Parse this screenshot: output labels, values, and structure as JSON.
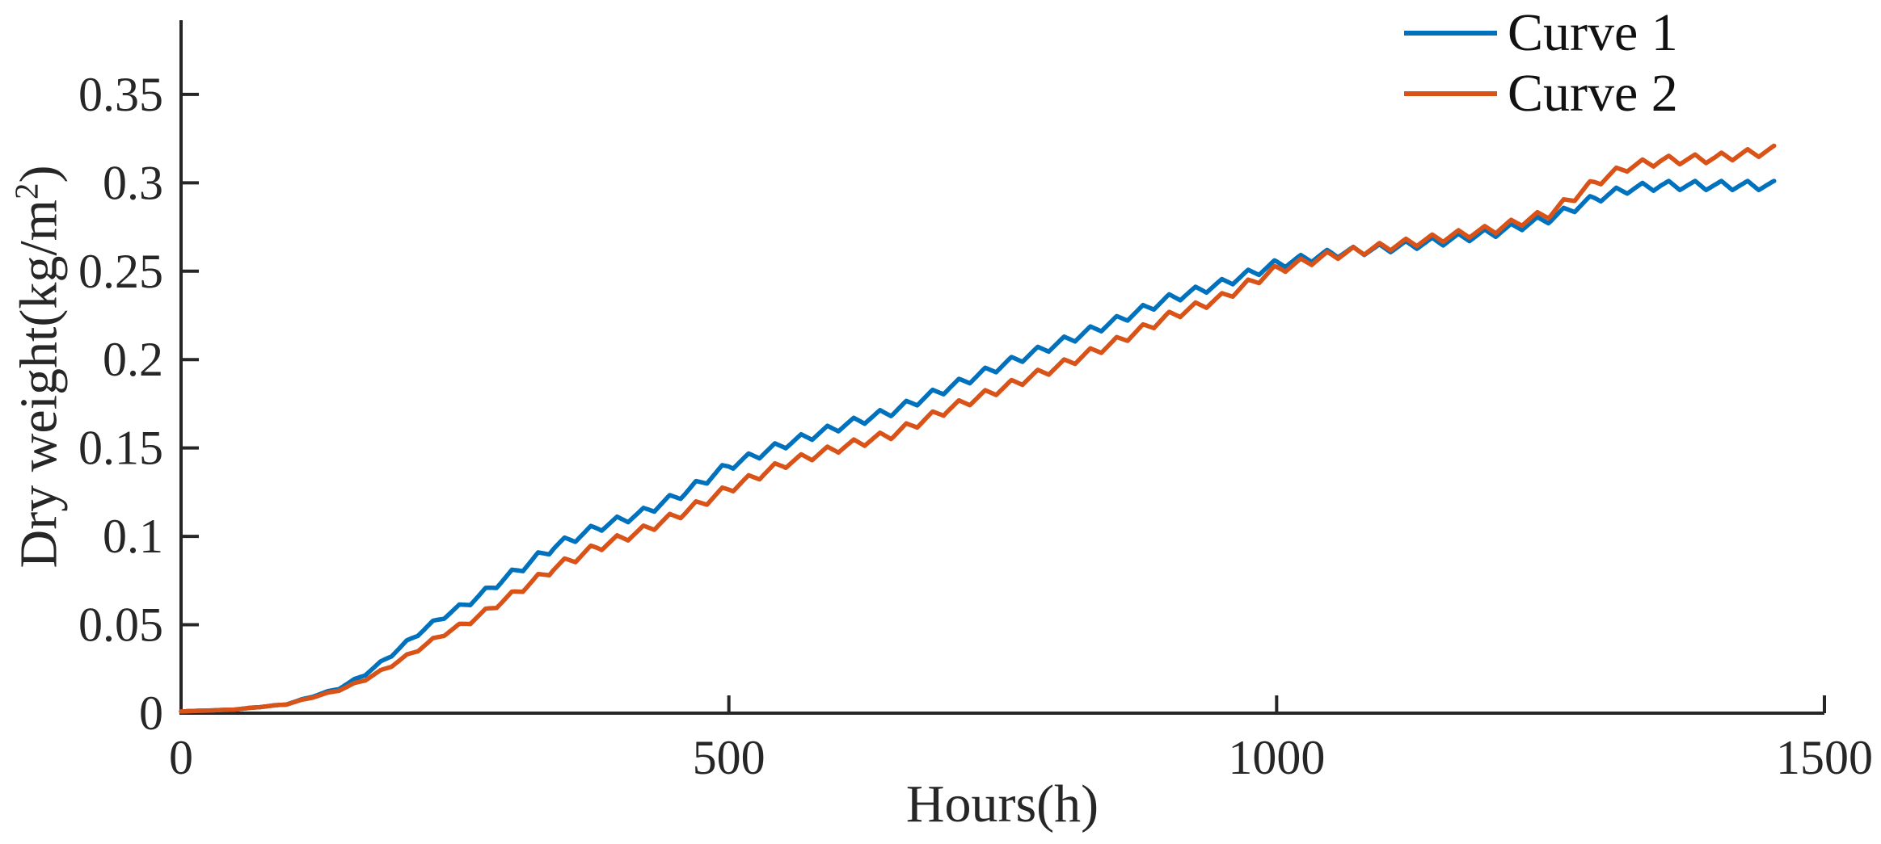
{
  "chart_data": {
    "type": "line",
    "title": "",
    "xlabel": "Hours(h)",
    "ylabel_pre": "Dry weight(kg/m",
    "ylabel_sup": "2",
    "ylabel_post": ")",
    "xlim": [
      0,
      1500
    ],
    "ylim": [
      0,
      0.392
    ],
    "xticks": [
      0,
      500,
      1000,
      1500
    ],
    "xtick_labels": [
      "0",
      "500",
      "1000",
      "1500"
    ],
    "yticks": [
      0,
      0.05,
      0.1,
      0.15,
      0.2,
      0.25,
      0.3,
      0.35
    ],
    "ytick_labels": [
      "0",
      "0.05",
      "0.1",
      "0.15",
      "0.2",
      "0.25",
      "0.3",
      "0.35"
    ],
    "grid": false,
    "box": false,
    "tick_direction": "in",
    "axis_color": "#262626",
    "legend_position": "top-right-outside-plot",
    "legend_frame": false,
    "x_range_hours": [
      0,
      1455
    ],
    "sample_step_hours": 2,
    "oscillation": {
      "period_hours": 24,
      "rise_fraction": 0.58,
      "amplitude": 0.0026,
      "amplitude_cap_ratio": 0.03
    },
    "series": [
      {
        "name": "Curve 1",
        "color": "#0072BD",
        "line_width": 5.5,
        "anchors": [
          [
            0,
            0.001
          ],
          [
            48,
            0.002
          ],
          [
            96,
            0.005
          ],
          [
            144,
            0.014
          ],
          [
            168,
            0.022
          ],
          [
            192,
            0.033
          ],
          [
            216,
            0.045
          ],
          [
            240,
            0.055
          ],
          [
            264,
            0.063
          ],
          [
            300,
            0.078
          ],
          [
            340,
            0.094
          ],
          [
            380,
            0.105
          ],
          [
            420,
            0.113
          ],
          [
            460,
            0.125
          ],
          [
            500,
            0.14
          ],
          [
            550,
            0.152
          ],
          [
            600,
            0.162
          ],
          [
            650,
            0.171
          ],
          [
            700,
            0.184
          ],
          [
            750,
            0.197
          ],
          [
            800,
            0.209
          ],
          [
            850,
            0.221
          ],
          [
            900,
            0.234
          ],
          [
            950,
            0.243
          ],
          [
            1000,
            0.254
          ],
          [
            1050,
            0.26
          ],
          [
            1100,
            0.263
          ],
          [
            1150,
            0.267
          ],
          [
            1200,
            0.272
          ],
          [
            1250,
            0.28
          ],
          [
            1290,
            0.291
          ],
          [
            1320,
            0.2965
          ],
          [
            1350,
            0.2985
          ],
          [
            1455,
            0.2985
          ]
        ]
      },
      {
        "name": "Curve 2",
        "color": "#D95319",
        "line_width": 5.5,
        "anchors": [
          [
            0,
            0.001
          ],
          [
            48,
            0.002
          ],
          [
            96,
            0.005
          ],
          [
            144,
            0.013
          ],
          [
            168,
            0.019
          ],
          [
            192,
            0.027
          ],
          [
            216,
            0.036
          ],
          [
            240,
            0.045
          ],
          [
            264,
            0.052
          ],
          [
            300,
            0.066
          ],
          [
            340,
            0.082
          ],
          [
            380,
            0.094
          ],
          [
            420,
            0.103
          ],
          [
            460,
            0.114
          ],
          [
            500,
            0.127
          ],
          [
            550,
            0.141
          ],
          [
            600,
            0.15
          ],
          [
            650,
            0.158
          ],
          [
            700,
            0.172
          ],
          [
            750,
            0.184
          ],
          [
            800,
            0.196
          ],
          [
            850,
            0.209
          ],
          [
            900,
            0.224
          ],
          [
            950,
            0.235
          ],
          [
            1000,
            0.251
          ],
          [
            1050,
            0.259
          ],
          [
            1100,
            0.264
          ],
          [
            1150,
            0.269
          ],
          [
            1200,
            0.274
          ],
          [
            1250,
            0.283
          ],
          [
            1290,
            0.3
          ],
          [
            1320,
            0.309
          ],
          [
            1350,
            0.3125
          ],
          [
            1400,
            0.314
          ],
          [
            1455,
            0.3185
          ]
        ]
      }
    ]
  }
}
